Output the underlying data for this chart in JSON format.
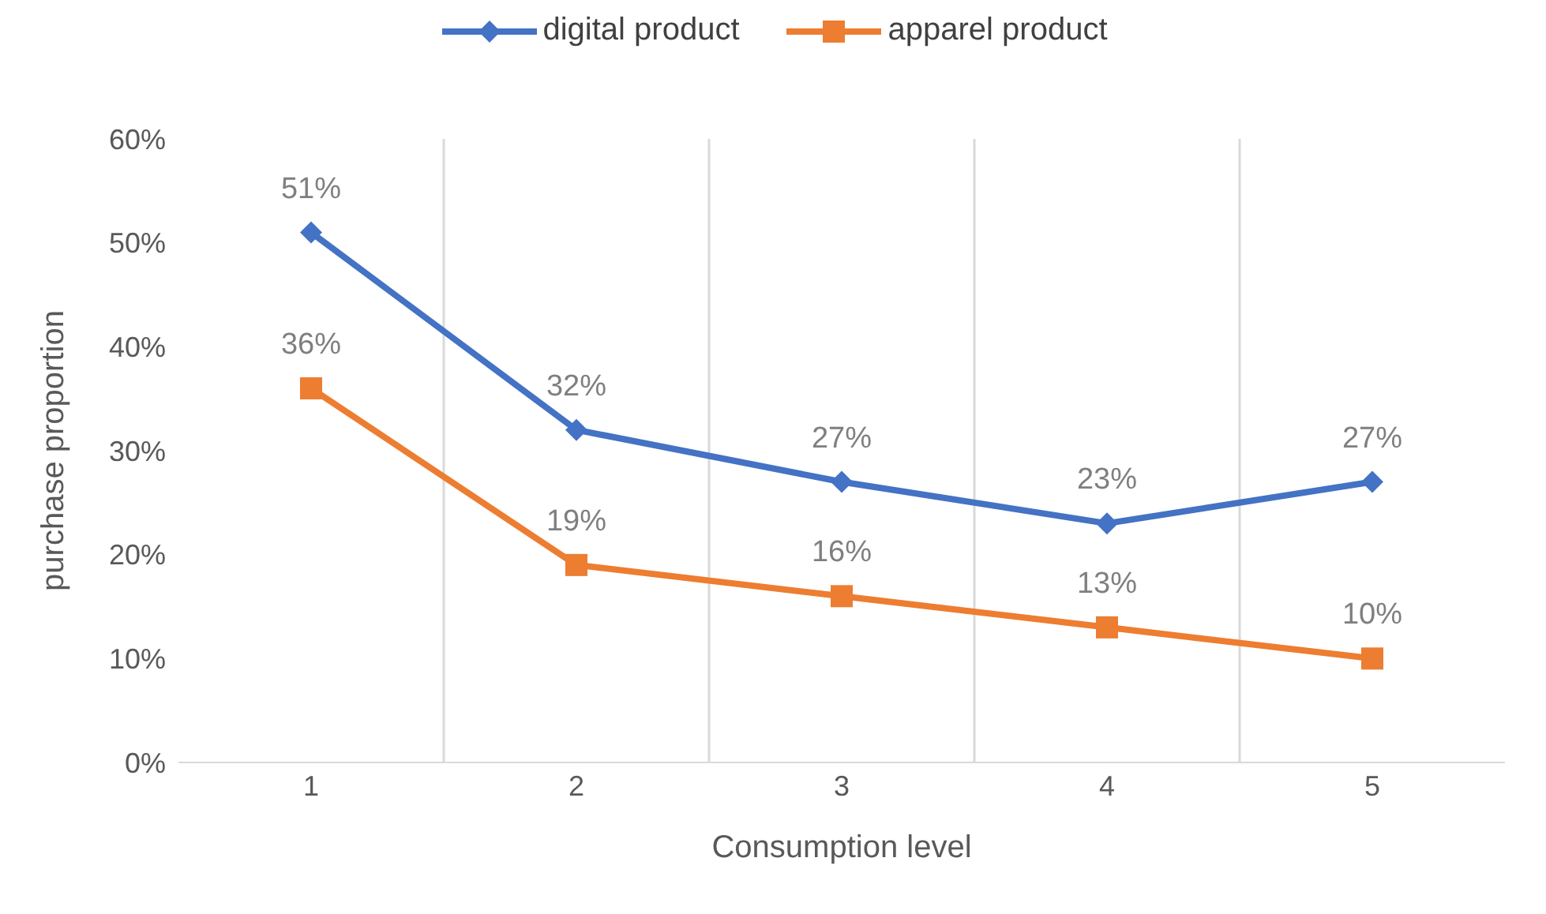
{
  "chart_data": {
    "type": "line",
    "xlabel": "Consumption level",
    "ylabel": "purchase proportion",
    "categories": [
      "1",
      "2",
      "3",
      "4",
      "5"
    ],
    "series": [
      {
        "name": "digital product",
        "color": "#4472c4",
        "marker": "diamond",
        "values": [
          51,
          32,
          27,
          23,
          27
        ],
        "value_labels": [
          "51%",
          "32%",
          "27%",
          "23%",
          "27%"
        ]
      },
      {
        "name": "apparel product",
        "color": "#ed7d31",
        "marker": "square",
        "values": [
          36,
          19,
          16,
          13,
          10
        ],
        "value_labels": [
          "36%",
          "19%",
          "16%",
          "13%",
          "10%"
        ]
      }
    ],
    "ylim": [
      0,
      60
    ],
    "yticks": [
      {
        "value": 0,
        "label": "0%"
      },
      {
        "value": 10,
        "label": "10%"
      },
      {
        "value": 20,
        "label": "20%"
      },
      {
        "value": 30,
        "label": "30%"
      },
      {
        "value": 40,
        "label": "40%"
      },
      {
        "value": 50,
        "label": "50%"
      },
      {
        "value": 60,
        "label": "60%"
      }
    ],
    "grid": "x",
    "legend": "top"
  }
}
